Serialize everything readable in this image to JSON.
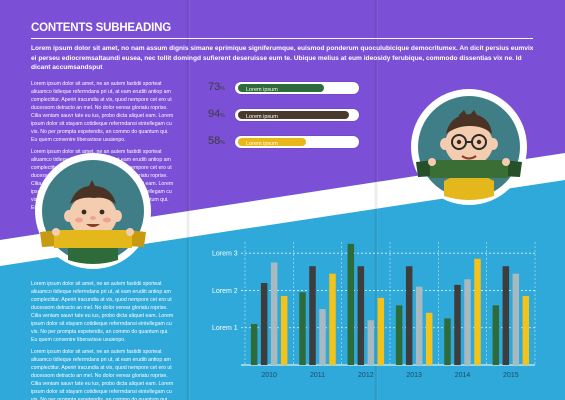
{
  "heading": "CONTENTS SUBHEADING",
  "intro": "Lorem ipsum dolor sit amet, no nam assum dignis simane eprimique signiferumque, euismod ponderum quoculubicique democritumex. An dicit persius eumvix ei perseu ediocremsaltaundi eusea, nec tollit domingd sufierent deseruisse eum te. Ubique melius at eum ideosidy ferubique, commodo dissentias vix ne. Id dicant accumsandsput",
  "col_top": [
    "Lorem ipsum dolor sit amet, ne an autem fastidii sporteat aliuamco tidieque referrndans pri ut, at eam eruditi antiop am complectitur. Aperiri iracundia at vix, quod nempore cet ero ut ducessom detracto an mel. No dolor verear gloriatu roprise. Cilia veniam sauvr tate eu ius, probo dicta aliquet eam. Lorem ipsum dolor sit stayam cotidieque referrndansi eintellegam cu vis. No per prompta expetendis, an commo do quantum qui. Eu quem convenire liberavisse usuienpo.",
    "Lorem ipsum dolor sit amet, ne an autem fastidii sporteat aliuamco tidieque referrndans pri ut, at eam eruditi antiop am complectitur. Aperiri iracundia at vix, quod nempore cet ero ut ducessom detracto an mel. No dolor verear gloriatu roprise. Cilia veniam sauvr tate eu ius, probo dicta aliquet eam. Lorem ipsum dolor sit stayam cotidieque referrndansi eintellegam cu vis. No per prompta expetendis, an commo do quantum qui. Eu quem convenire liberavisse usuienpo."
  ],
  "col_bottom": [
    "Lorem ipsum dolor sit amet, ne an autem fastidii sporteat aliuamco tidieque referrndans pri ut, at eam eruditi antiop am complectitur. Aperiri iracundia at vix, quod nempore cet ero ut ducessom detracto an mel. No dolor verear gloriatu roprise. Cilia veniam sauvr tate eu ius, probo dicta aliquet eam. Lorem ipsum dolor sit stayam cotidieque referrndansi eintellegam cu vis. No per prompta expetendis, an commo do quantum qui. Eu quem convenire liberavisse usuienpo.",
    "Lorem ipsum dolor sit amet, ne an autem fastidii sporteat aliuamco tidieque referrndans pri ut, at eam eruditi antiop am complectitur. Aperiri iracundia at vix, quod nempore cet ero ut ducessom detracto an mel. No dolor verear gloriatu roprise. Cilia veniam sauvr tate eu ius, probo dicta aliquet eam. Lorem ipsum dolor sit stayam cotidieque referrndansi eintellegam cu vis. No per prompta expetendis, an commo do quantum qui. Eu quem convenire liberavisse usuienpo."
  ],
  "progress": [
    {
      "value": "73",
      "label": "Lorem ipsum",
      "fill": 0.73,
      "color": "#2e6b3a"
    },
    {
      "value": "94",
      "label": "Lorem ipsum",
      "fill": 0.94,
      "color": "#4a3a2e"
    },
    {
      "value": "58",
      "label": "Lorem ipsum",
      "fill": 0.58,
      "color": "#e8b71a"
    }
  ],
  "percent_sign": "%",
  "colors": {
    "purple": "#7b4fd6",
    "blue": "#2ea9d9",
    "green": "#2e6b3a",
    "dark": "#3d3d3d",
    "grey": "#a9b9c0",
    "yellow": "#f3c31a",
    "ribbon_yellow": "#e4b71c",
    "ribbon_green": "#3a6e35"
  },
  "chart_data": {
    "type": "bar",
    "categories": [
      "2010",
      "2011",
      "2012",
      "2013",
      "2014",
      "2015"
    ],
    "ytick_labels": [
      "Lorem 1",
      "Lorem 2",
      "Lorem 3"
    ],
    "ylim": [
      0,
      3.3
    ],
    "series": [
      {
        "color": "#2e6b3a",
        "values": [
          1.1,
          1.95,
          3.25,
          1.6,
          1.25,
          1.6
        ]
      },
      {
        "color": "#3d3d3d",
        "values": [
          2.2,
          2.65,
          2.65,
          2.65,
          2.15,
          2.65
        ]
      },
      {
        "color": "#a9b9c0",
        "values": [
          2.75,
          1.5,
          1.2,
          2.1,
          2.3,
          2.45
        ]
      },
      {
        "color": "#f3c31a",
        "values": [
          1.85,
          2.45,
          1.8,
          1.4,
          2.85,
          1.85
        ]
      }
    ]
  },
  "icons": {
    "boy_left": "smiling-boy-avatar-icon",
    "boy_right": "glasses-boy-avatar-icon"
  }
}
